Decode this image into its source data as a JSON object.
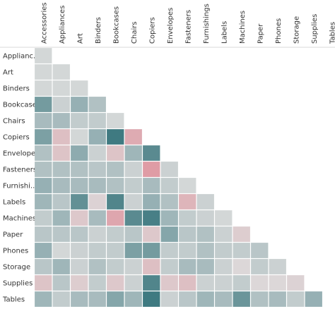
{
  "chart_data": {
    "type": "heatmap",
    "title": "",
    "columns": [
      "Accessories",
      "Appliances",
      "Art",
      "Binders",
      "Bookcases",
      "Chairs",
      "Copiers",
      "Envelopes",
      "Fasteners",
      "Furnishings",
      "Labels",
      "Machines",
      "Paper",
      "Phones",
      "Storage",
      "Supplies",
      "Tables"
    ],
    "rows": [
      "Applianc..",
      "Art",
      "Binders",
      "Bookcases",
      "Chairs",
      "Copiers",
      "Envelopes",
      "Fasteners",
      "Furnishi..",
      "Labels",
      "Machines",
      "Paper",
      "Phones",
      "Storage",
      "Supplies",
      "Tables"
    ],
    "scale_note": "diverging: positive = teal, negative = pink, 0 = light gray",
    "colors": {
      "positive": "#2e6f77",
      "neutral": "#dcdcdc",
      "negative": "#e07a88"
    },
    "values": [
      [
        0.05
      ],
      [
        0.05,
        0.05
      ],
      [
        0.05,
        0.05,
        0.05
      ],
      [
        0.6,
        0.1,
        0.4,
        0.25
      ],
      [
        0.3,
        0.3,
        0.15,
        0.15,
        0.05
      ],
      [
        0.55,
        -0.3,
        0.05,
        0.4,
        0.9,
        -0.5
      ],
      [
        0.25,
        -0.25,
        0.45,
        0.1,
        -0.25,
        0.35,
        0.75
      ],
      [
        0.25,
        0.25,
        0.25,
        0.2,
        0.25,
        0.1,
        -0.65,
        0.1
      ],
      [
        0.4,
        0.3,
        0.3,
        0.3,
        0.25,
        0.15,
        0.3,
        0.15,
        0.05
      ],
      [
        0.35,
        0.2,
        0.7,
        -0.1,
        0.8,
        0.1,
        0.4,
        0.25,
        -0.4,
        0.1
      ],
      [
        0.15,
        0.35,
        -0.2,
        0.3,
        -0.55,
        0.75,
        0.85,
        0.35,
        0.15,
        0.1,
        0.05
      ],
      [
        0.2,
        0.2,
        0.2,
        0.1,
        0.15,
        0.2,
        -0.2,
        0.5,
        0.2,
        0.25,
        0.1,
        -0.15
      ],
      [
        0.4,
        0.05,
        0.1,
        0.15,
        0.15,
        0.55,
        0.6,
        0.15,
        0.15,
        0.25,
        0.15,
        0.15,
        0.2
      ],
      [
        0.2,
        0.35,
        0.1,
        0.25,
        0.15,
        0.1,
        -0.3,
        0.15,
        0.3,
        0.3,
        0.1,
        -0.05,
        0.15,
        0.1
      ],
      [
        -0.25,
        0.2,
        -0.15,
        0.15,
        -0.2,
        0.1,
        0.8,
        -0.2,
        -0.3,
        0.1,
        0.1,
        0.15,
        -0.05,
        -0.05,
        -0.1
      ],
      [
        0.35,
        0.15,
        0.3,
        0.3,
        0.5,
        0.35,
        0.9,
        0.1,
        0.2,
        0.35,
        0.3,
        0.65,
        0.25,
        0.3,
        0.15,
        0.4
      ]
    ]
  }
}
